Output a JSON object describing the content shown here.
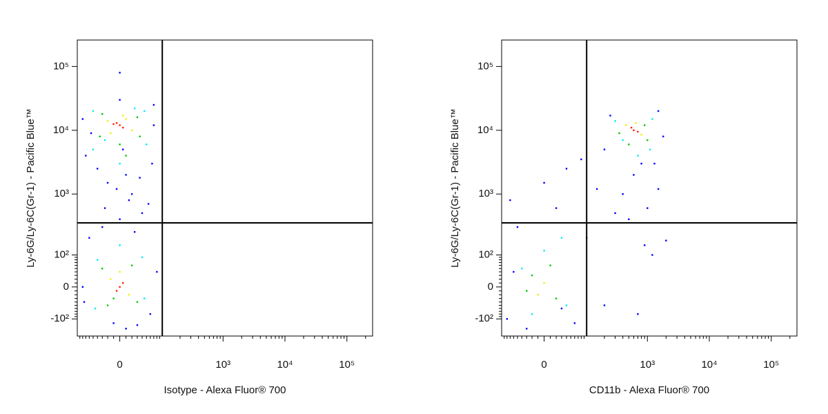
{
  "chart_data": [
    {
      "type": "scatter",
      "xscale": "logicle",
      "yscale": "logicle",
      "xlabel": "Isotype - Alexa Fluor® 700",
      "ylabel": "Ly-6G/Ly-6C(Gr-1) - Pacific Blue™",
      "xlim": [
        -100,
        260000
      ],
      "ylim": [
        -200,
        260000
      ],
      "xticks": [
        0,
        {
          "value": 1000,
          "label": "10³"
        },
        {
          "value": 10000,
          "label": "10⁴"
        },
        {
          "value": 100000,
          "label": "10⁵"
        }
      ],
      "yticks": [
        {
          "value": -100,
          "label": "-10²"
        },
        0,
        {
          "value": 100,
          "label": "10²"
        },
        {
          "value": 1000,
          "label": "10³"
        },
        {
          "value": 10000,
          "label": "10⁴"
        },
        {
          "value": 100000,
          "label": "10⁵"
        }
      ],
      "gates": {
        "x": 100,
        "y": 350
      },
      "series": [
        {
          "color": "#0000ff",
          "x": [
            -70,
            70,
            -80,
            65,
            0,
            -20,
            15,
            -25,
            10,
            0,
            20,
            -30,
            25,
            -60,
            60,
            -80,
            80,
            -10,
            30,
            0,
            70,
            -75,
            40,
            -40,
            10,
            5,
            -55,
            55,
            -5,
            35
          ],
          "y": [
            4000,
            25000,
            15000,
            3000,
            30000,
            1500,
            800,
            600,
            2000,
            400,
            1000,
            300,
            250,
            200,
            -80,
            0,
            40,
            -120,
            -130,
            80000,
            12000,
            -40,
            500,
            2500,
            -150,
            5000,
            9000,
            700,
            1200,
            1800
          ]
        },
        {
          "color": "#00e8ff",
          "x": [
            -50,
            45,
            0,
            -50,
            50,
            -40,
            40,
            -45,
            45,
            0,
            -25,
            25
          ],
          "y": [
            5000,
            20000,
            3000,
            20000,
            6000,
            80,
            90,
            -60,
            -30,
            150,
            7000,
            22000
          ]
        },
        {
          "color": "#00c800",
          "x": [
            -35,
            30,
            -30,
            35,
            0,
            -30,
            30,
            20,
            -20,
            10,
            -10
          ],
          "y": [
            8000,
            16000,
            18000,
            8000,
            6000,
            50,
            -40,
            60,
            -50,
            4000,
            -30
          ]
        },
        {
          "color": "#f0f000",
          "x": [
            -20,
            20,
            10,
            -15,
            -15,
            15,
            0,
            5
          ],
          "y": [
            14000,
            10000,
            15000,
            9000,
            20,
            -20,
            40,
            17000
          ]
        },
        {
          "color": "#ff2000",
          "x": [
            0,
            -5,
            5,
            -10,
            0,
            5,
            -5
          ],
          "y": [
            12000,
            13000,
            11000,
            12500,
            0,
            10,
            -10
          ]
        }
      ]
    },
    {
      "type": "scatter",
      "xscale": "logicle",
      "yscale": "logicle",
      "xlabel": "CD11b - Alexa Fluor® 700",
      "ylabel": "Ly-6G/Ly-6C(Gr-1) - Pacific Blue™",
      "xlim": [
        -100,
        260000
      ],
      "ylim": [
        -200,
        260000
      ],
      "xticks": [
        0,
        {
          "value": 1000,
          "label": "10³"
        },
        {
          "value": 10000,
          "label": "10⁴"
        },
        {
          "value": 100000,
          "label": "10⁵"
        }
      ],
      "yticks": [
        {
          "value": -100,
          "label": "-10²"
        },
        0,
        {
          "value": 100,
          "label": "10²"
        },
        {
          "value": 1000,
          "label": "10³"
        },
        {
          "value": 10000,
          "label": "10⁴"
        },
        {
          "value": 100000,
          "label": "10⁵"
        }
      ],
      "gates": {
        "x": 100,
        "y": 350
      },
      "series": [
        {
          "color": "#0000ff",
          "x": [
            250,
            1500,
            800,
            1300,
            200,
            1800,
            600,
            150,
            300,
            500,
            900,
            1200,
            -50,
            -70,
            0,
            20,
            40,
            100,
            200,
            -80,
            60,
            -30,
            80,
            1500,
            2000,
            700,
            -60,
            30,
            400,
            1000
          ],
          "y": [
            17000,
            20000,
            3000,
            3000,
            5000,
            8000,
            2000,
            1200,
            500,
            400,
            150,
            100,
            300,
            800,
            1500,
            600,
            2500,
            200,
            -50,
            -100,
            -120,
            -150,
            3500,
            1200,
            180,
            -80,
            40,
            -60,
            1000,
            600
          ]
        },
        {
          "color": "#00e8ff",
          "x": [
            300,
            1200,
            700,
            1100,
            400,
            -40,
            40,
            0,
            30,
            -20
          ],
          "y": [
            14000,
            15000,
            4000,
            5000,
            7000,
            50,
            -50,
            120,
            200,
            -80
          ]
        },
        {
          "color": "#00c800",
          "x": [
            350,
            900,
            500,
            1000,
            -20,
            20,
            10,
            -30
          ],
          "y": [
            9000,
            12000,
            6000,
            7000,
            30,
            -30,
            60,
            -10
          ]
        },
        {
          "color": "#f0f000",
          "x": [
            450,
            800,
            650,
            0,
            -10
          ],
          "y": [
            12000,
            8500,
            13000,
            10,
            -20
          ]
        },
        {
          "color": "#ff2000",
          "x": [
            600,
            550,
            700
          ],
          "y": [
            10000,
            11000,
            9500
          ]
        }
      ]
    }
  ]
}
